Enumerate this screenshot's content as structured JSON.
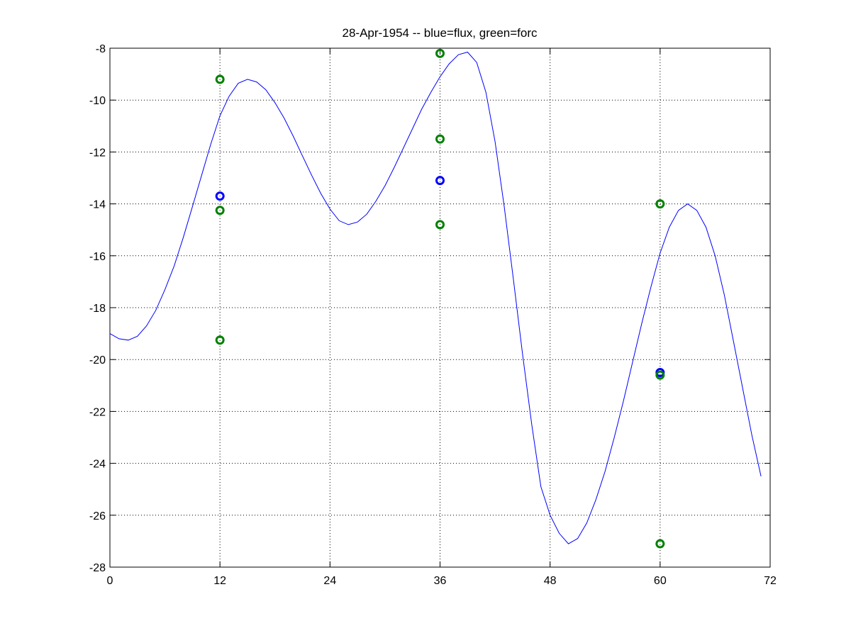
{
  "chart_data": {
    "type": "line",
    "title": "28-Apr-1954 -- blue=flux, green=forc",
    "xlabel": "",
    "ylabel": "",
    "xlim": [
      0,
      72
    ],
    "ylim": [
      -28,
      -8
    ],
    "xticks": [
      0,
      12,
      24,
      36,
      48,
      60,
      72
    ],
    "yticks": [
      -8,
      -10,
      -12,
      -14,
      -16,
      -18,
      -20,
      -22,
      -24,
      -26,
      -28
    ],
    "grid": true,
    "series": [
      {
        "kind": "line",
        "color": "#0000ff",
        "points": [
          [
            0,
            -19.0
          ],
          [
            1,
            -19.2
          ],
          [
            2,
            -19.25
          ],
          [
            3,
            -19.1
          ],
          [
            4,
            -18.7
          ],
          [
            5,
            -18.1
          ],
          [
            6,
            -17.3
          ],
          [
            7,
            -16.4
          ],
          [
            8,
            -15.3
          ],
          [
            9,
            -14.1
          ],
          [
            10,
            -12.9
          ],
          [
            11,
            -11.7
          ],
          [
            12,
            -10.6
          ],
          [
            13,
            -9.85
          ],
          [
            14,
            -9.35
          ],
          [
            15,
            -9.2
          ],
          [
            16,
            -9.3
          ],
          [
            17,
            -9.6
          ],
          [
            18,
            -10.1
          ],
          [
            19,
            -10.7
          ],
          [
            20,
            -11.4
          ],
          [
            21,
            -12.15
          ],
          [
            22,
            -12.9
          ],
          [
            23,
            -13.6
          ],
          [
            24,
            -14.2
          ],
          [
            25,
            -14.65
          ],
          [
            26,
            -14.8
          ],
          [
            27,
            -14.7
          ],
          [
            28,
            -14.4
          ],
          [
            29,
            -13.9
          ],
          [
            30,
            -13.3
          ],
          [
            31,
            -12.6
          ],
          [
            32,
            -11.85
          ],
          [
            33,
            -11.1
          ],
          [
            34,
            -10.35
          ],
          [
            35,
            -9.7
          ],
          [
            36,
            -9.1
          ],
          [
            37,
            -8.6
          ],
          [
            38,
            -8.25
          ],
          [
            39,
            -8.15
          ],
          [
            40,
            -8.55
          ],
          [
            41,
            -9.7
          ],
          [
            42,
            -11.6
          ],
          [
            43,
            -14.1
          ],
          [
            44,
            -16.9
          ],
          [
            45,
            -19.8
          ],
          [
            46,
            -22.5
          ],
          [
            47,
            -24.9
          ],
          [
            48,
            -26.0
          ],
          [
            49,
            -26.7
          ],
          [
            50,
            -27.1
          ],
          [
            51,
            -26.9
          ],
          [
            52,
            -26.3
          ],
          [
            53,
            -25.4
          ],
          [
            54,
            -24.3
          ],
          [
            55,
            -23.0
          ],
          [
            56,
            -21.6
          ],
          [
            57,
            -20.1
          ],
          [
            58,
            -18.6
          ],
          [
            59,
            -17.2
          ],
          [
            60,
            -15.9
          ],
          [
            61,
            -14.9
          ],
          [
            62,
            -14.25
          ],
          [
            63,
            -14.0
          ],
          [
            64,
            -14.25
          ],
          [
            65,
            -14.9
          ],
          [
            66,
            -16.0
          ],
          [
            67,
            -17.5
          ],
          [
            68,
            -19.3
          ],
          [
            69,
            -21.1
          ],
          [
            70,
            -22.9
          ],
          [
            71,
            -24.5
          ]
        ]
      },
      {
        "kind": "markers",
        "color": "#0000ff",
        "points": [
          [
            12,
            -13.7
          ],
          [
            36,
            -13.1
          ],
          [
            60,
            -20.5
          ]
        ]
      },
      {
        "kind": "markers",
        "color": "#008000",
        "points": [
          [
            12,
            -9.2
          ],
          [
            12,
            -14.25
          ],
          [
            12,
            -19.25
          ],
          [
            36,
            -8.2
          ],
          [
            36,
            -11.5
          ],
          [
            36,
            -14.8
          ],
          [
            60,
            -14.0
          ],
          [
            60,
            -20.6
          ],
          [
            60,
            -27.1
          ]
        ]
      }
    ]
  }
}
